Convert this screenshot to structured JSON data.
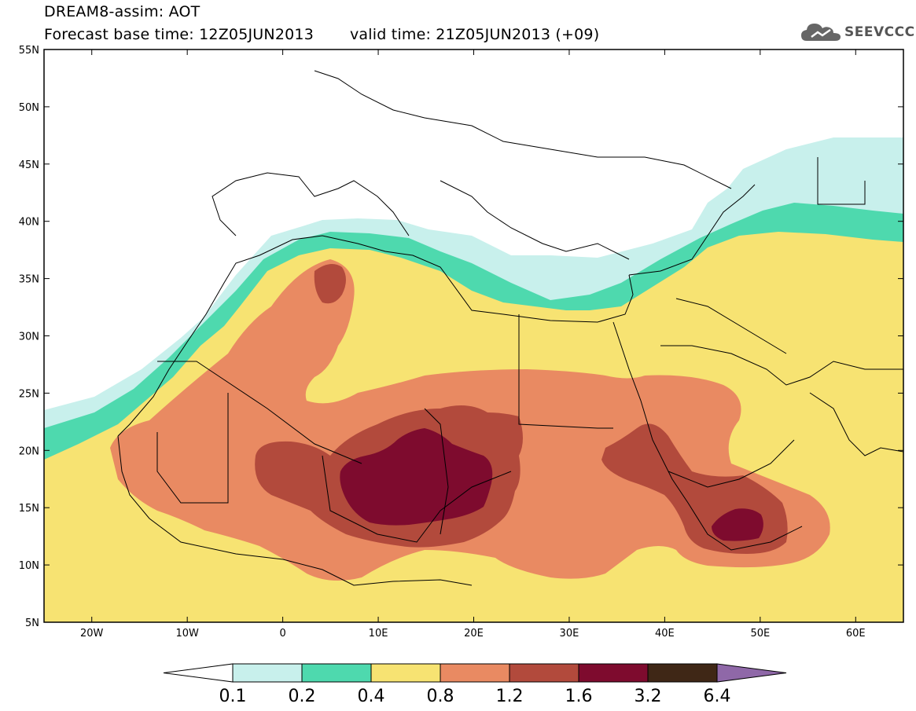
{
  "title": {
    "line1": "DREAM8-assim: AOT",
    "base_time": "Forecast base time: 12Z05JUN2013",
    "valid_time": "valid time: 21Z05JUN2013 (+09)"
  },
  "logo": {
    "text": "SEEVCCC",
    "icon": "cloud-icon"
  },
  "map": {
    "lon_range": [
      -25,
      65
    ],
    "lat_range": [
      5,
      55
    ],
    "y_ticks": [
      {
        "value": 55,
        "label": "55N"
      },
      {
        "value": 50,
        "label": "50N"
      },
      {
        "value": 45,
        "label": "45N"
      },
      {
        "value": 40,
        "label": "40N"
      },
      {
        "value": 35,
        "label": "35N"
      },
      {
        "value": 30,
        "label": "30N"
      },
      {
        "value": 25,
        "label": "25N"
      },
      {
        "value": 20,
        "label": "20N"
      },
      {
        "value": 15,
        "label": "15N"
      },
      {
        "value": 10,
        "label": "10N"
      },
      {
        "value": 5,
        "label": "5N"
      }
    ],
    "x_ticks": [
      {
        "value": -20,
        "label": "20W"
      },
      {
        "value": -10,
        "label": "10W"
      },
      {
        "value": 0,
        "label": "0"
      },
      {
        "value": 10,
        "label": "10E"
      },
      {
        "value": 20,
        "label": "20E"
      },
      {
        "value": 30,
        "label": "30E"
      },
      {
        "value": 40,
        "label": "40E"
      },
      {
        "value": 50,
        "label": "50E"
      },
      {
        "value": 60,
        "label": "60E"
      }
    ]
  },
  "colorbar": {
    "colors": [
      "#ffffff",
      "#c8f0ec",
      "#4ed9ae",
      "#f7e372",
      "#e98a62",
      "#b24a3c",
      "#7e0b2e",
      "#3f2716",
      "#8f68a8"
    ],
    "labels": [
      "0.1",
      "0.2",
      "0.4",
      "0.8",
      "1.2",
      "1.6",
      "3.2",
      "6.4"
    ]
  }
}
